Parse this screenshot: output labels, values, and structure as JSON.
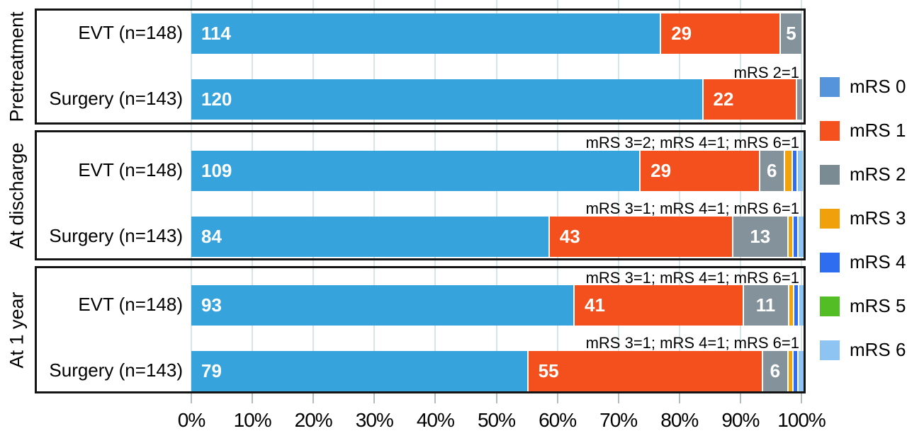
{
  "chart_data": {
    "type": "bar",
    "stacked": true,
    "orientation": "horizontal",
    "title": "",
    "x_axis": {
      "tick_labels": [
        "0%",
        "10%",
        "20%",
        "30%",
        "40%",
        "50%",
        "60%",
        "70%",
        "80%",
        "90%",
        "100%"
      ],
      "min_percent": 0,
      "max_percent": 100,
      "grid": true
    },
    "legend": {
      "position": "right",
      "items": [
        {
          "label": "mRS 0",
          "color": "#5594da"
        },
        {
          "label": "mRS 1",
          "color": "#f4511e"
        },
        {
          "label": "mRS 2",
          "color": "#7b8b94"
        },
        {
          "label": "mRS 3",
          "color": "#efa00b"
        },
        {
          "label": "mRS 4",
          "color": "#2e6cf0"
        },
        {
          "label": "mRS 5",
          "color": "#53bd26"
        },
        {
          "label": "mRS 6",
          "color": "#8dc4f1"
        }
      ]
    },
    "categories": [
      {
        "label": "mRS 0",
        "bar_color": "#36a3dd",
        "value_align": "start"
      },
      {
        "label": "mRS 1",
        "bar_color": "#f4501e",
        "value_align": "start"
      },
      {
        "label": "mRS 2",
        "bar_color": "#84929b",
        "value_align": "center"
      },
      {
        "label": "mRS 3",
        "bar_color": "#f0a30a",
        "value_align": "center"
      },
      {
        "label": "mRS 4",
        "bar_color": "#2f6df2",
        "value_align": "center"
      },
      {
        "label": "mRS 5",
        "bar_color": "#53bd26",
        "value_align": "center"
      },
      {
        "label": "mRS 6",
        "bar_color": "#8dc4f1",
        "value_align": "center"
      }
    ],
    "panels": [
      {
        "label": "Pretreatment",
        "rows": [
          {
            "label": "EVT (n=148)",
            "total": 148,
            "annotation": "",
            "segments": [
              {
                "cat": 0,
                "value": 114,
                "labeled": true
              },
              {
                "cat": 1,
                "value": 29,
                "labeled": true
              },
              {
                "cat": 2,
                "value": 5,
                "labeled": true
              }
            ]
          },
          {
            "label": "Surgery (n=143)",
            "total": 143,
            "annotation": "mRS 2=1",
            "segments": [
              {
                "cat": 0,
                "value": 120,
                "labeled": true
              },
              {
                "cat": 1,
                "value": 22,
                "labeled": true
              },
              {
                "cat": 2,
                "value": 1,
                "labeled": false
              }
            ]
          }
        ]
      },
      {
        "label": "At discharge",
        "rows": [
          {
            "label": "EVT (n=148)",
            "total": 148,
            "annotation": "mRS 3=2; mRS 4=1; mRS 6=1",
            "segments": [
              {
                "cat": 0,
                "value": 109,
                "labeled": true
              },
              {
                "cat": 1,
                "value": 29,
                "labeled": true
              },
              {
                "cat": 2,
                "value": 6,
                "labeled": true
              },
              {
                "cat": 3,
                "value": 2,
                "labeled": false
              },
              {
                "cat": 4,
                "value": 1,
                "labeled": false
              },
              {
                "cat": 6,
                "value": 1,
                "labeled": false
              }
            ]
          },
          {
            "label": "Surgery (n=143)",
            "total": 143,
            "annotation": "mRS 3=1; mRS 4=1; mRS 6=1",
            "segments": [
              {
                "cat": 0,
                "value": 84,
                "labeled": true
              },
              {
                "cat": 1,
                "value": 43,
                "labeled": true
              },
              {
                "cat": 2,
                "value": 13,
                "labeled": true
              },
              {
                "cat": 3,
                "value": 1,
                "labeled": false
              },
              {
                "cat": 4,
                "value": 1,
                "labeled": false
              },
              {
                "cat": 6,
                "value": 1,
                "labeled": false
              }
            ]
          }
        ]
      },
      {
        "label": "At 1 year",
        "rows": [
          {
            "label": "EVT (n=148)",
            "total": 148,
            "annotation": "mRS 3=1; mRS 4=1; mRS 6=1",
            "segments": [
              {
                "cat": 0,
                "value": 93,
                "labeled": true
              },
              {
                "cat": 1,
                "value": 41,
                "labeled": true
              },
              {
                "cat": 2,
                "value": 11,
                "labeled": true
              },
              {
                "cat": 3,
                "value": 1,
                "labeled": false
              },
              {
                "cat": 4,
                "value": 1,
                "labeled": false
              },
              {
                "cat": 6,
                "value": 1,
                "labeled": false
              }
            ]
          },
          {
            "label": "Surgery (n=143)",
            "total": 143,
            "annotation": "mRS 3=1; mRS 4=1; mRS 6=1",
            "segments": [
              {
                "cat": 0,
                "value": 79,
                "labeled": true
              },
              {
                "cat": 1,
                "value": 55,
                "labeled": true
              },
              {
                "cat": 2,
                "value": 6,
                "labeled": true
              },
              {
                "cat": 3,
                "value": 1,
                "labeled": false
              },
              {
                "cat": 4,
                "value": 1,
                "labeled": false
              },
              {
                "cat": 6,
                "value": 1,
                "labeled": false
              }
            ]
          }
        ]
      }
    ]
  }
}
